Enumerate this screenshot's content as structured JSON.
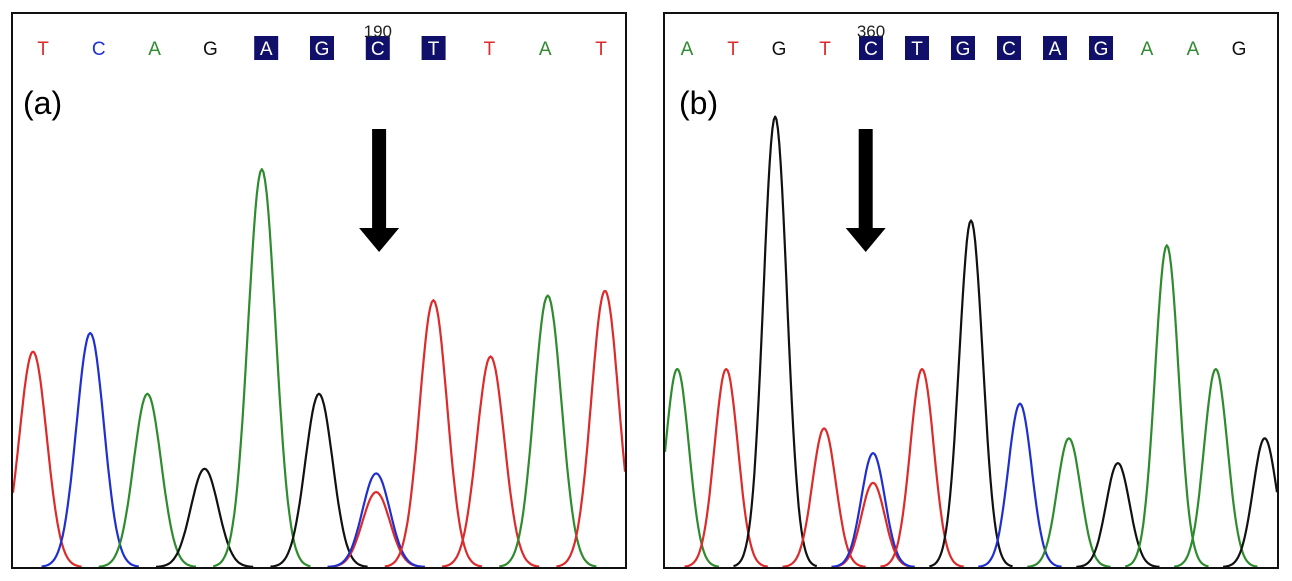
{
  "colors": {
    "A": "#2e8b2e",
    "C": "#1f2fd0",
    "G": "#111111",
    "T": "#dd2a2a",
    "highlight_bg": "#10106b",
    "highlight_text": "#ffffff",
    "arrow": "#000000"
  },
  "icons": {
    "arrow": "down-arrow-icon"
  },
  "chart_data": [
    {
      "type": "line",
      "title": "",
      "panel_label": "(a)",
      "position_label": "190",
      "position_base_index": 6,
      "arrow_at": 6.05,
      "bases": [
        "T",
        "C",
        "A",
        "G",
        "A",
        "G",
        "C",
        "T",
        "T",
        "A",
        "T"
      ],
      "highlighted": [
        4,
        5,
        6,
        7
      ],
      "xlim": [
        -0.35,
        10.35
      ],
      "ylim": [
        0,
        100
      ],
      "peaks": [
        {
          "base": "T",
          "x": 0,
          "height": 46
        },
        {
          "base": "C",
          "x": 1,
          "height": 50
        },
        {
          "base": "A",
          "x": 2,
          "height": 37
        },
        {
          "base": "G",
          "x": 3,
          "height": 21
        },
        {
          "base": "A",
          "x": 4,
          "height": 85
        },
        {
          "base": "G",
          "x": 5,
          "height": 37
        },
        {
          "base": "T",
          "x": 6,
          "height": 16
        },
        {
          "base": "C",
          "x": 6,
          "height": 20
        },
        {
          "base": "T",
          "x": 7,
          "height": 57
        },
        {
          "base": "T",
          "x": 8,
          "height": 45
        },
        {
          "base": "A",
          "x": 9,
          "height": 58
        },
        {
          "base": "T",
          "x": 10,
          "height": 59
        }
      ]
    },
    {
      "type": "line",
      "title": "",
      "panel_label": "(b)",
      "position_label": "360",
      "position_base_index": 4,
      "arrow_at": 3.85,
      "bases": [
        "A",
        "T",
        "G",
        "T",
        "C",
        "T",
        "G",
        "C",
        "A",
        "G",
        "A",
        "A",
        "G"
      ],
      "highlighted": [
        4,
        5,
        6,
        7,
        8,
        9
      ],
      "xlim": [
        -0.25,
        12.25
      ],
      "ylim": [
        0,
        100
      ],
      "peaks": [
        {
          "base": "A",
          "x": 0,
          "height": 40
        },
        {
          "base": "T",
          "x": 1,
          "height": 40
        },
        {
          "base": "G",
          "x": 2,
          "height": 91
        },
        {
          "base": "T",
          "x": 3,
          "height": 28
        },
        {
          "base": "T",
          "x": 4,
          "height": 17
        },
        {
          "base": "C",
          "x": 4,
          "height": 23
        },
        {
          "base": "T",
          "x": 5,
          "height": 40
        },
        {
          "base": "G",
          "x": 6,
          "height": 70
        },
        {
          "base": "C",
          "x": 7,
          "height": 33
        },
        {
          "base": "A",
          "x": 8,
          "height": 26
        },
        {
          "base": "G",
          "x": 9,
          "height": 21
        },
        {
          "base": "A",
          "x": 10,
          "height": 65
        },
        {
          "base": "A",
          "x": 11,
          "height": 40
        },
        {
          "base": "G",
          "x": 12,
          "height": 26
        }
      ]
    }
  ]
}
